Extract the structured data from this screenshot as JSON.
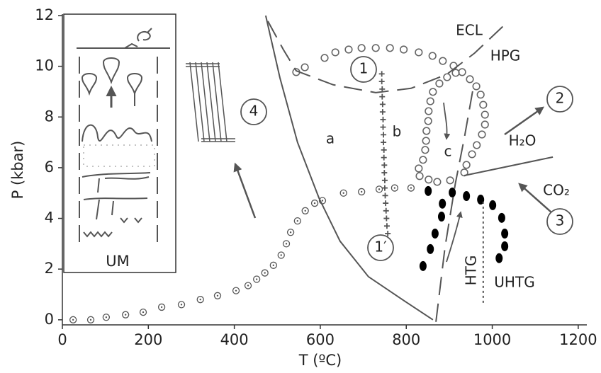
{
  "chart_data": {
    "type": "line",
    "xlabel": "T (ºC)",
    "ylabel": "P (kbar)",
    "xlim": [
      0,
      1220
    ],
    "ylim": [
      -0.2,
      12
    ],
    "xticks": [
      0,
      200,
      400,
      600,
      800,
      1000,
      1200
    ],
    "yticks": [
      0,
      2,
      4,
      6,
      8,
      10,
      12
    ],
    "series": [
      {
        "style": "dotted-circle",
        "color": "#555",
        "x": [
          25,
          66,
          102,
          147,
          188,
          231,
          277,
          321,
          361,
          404,
          432,
          452,
          471,
          491,
          509,
          521,
          531,
          547,
          565,
          587,
          605,
          654,
          696,
          737,
          773,
          811
        ],
        "values": [
          0,
          0,
          0.1,
          0.2,
          0.3,
          0.5,
          0.6,
          0.8,
          0.95,
          1.15,
          1.35,
          1.6,
          1.85,
          2.15,
          2.55,
          3.0,
          3.45,
          3.9,
          4.3,
          4.6,
          4.7,
          5.0,
          5.05,
          5.15,
          5.2,
          5.2
        ]
      },
      {
        "style": "solid",
        "color": "#555",
        "x": [
          473,
          506,
          547,
          597,
          646,
          712,
          795,
          862
        ],
        "values": [
          12,
          9.55,
          7.0,
          4.8,
          3.1,
          1.7,
          0.75,
          0
        ]
      },
      {
        "style": "open-circle",
        "color": "#666",
        "x": [
          544,
          564,
          610,
          635,
          666,
          696,
          729,
          762,
          794,
          829,
          861,
          885,
          910,
          930,
          948,
          963,
          973,
          979,
          983,
          983,
          976,
          964,
          953,
          940,
          935
        ],
        "values": [
          9.77,
          9.96,
          10.33,
          10.55,
          10.66,
          10.72,
          10.72,
          10.72,
          10.66,
          10.55,
          10.41,
          10.21,
          10.02,
          9.77,
          9.49,
          9.21,
          8.88,
          8.48,
          8.09,
          7.7,
          7.31,
          6.89,
          6.53,
          6.11,
          5.81
        ]
      },
      {
        "style": "open-circle",
        "color": "#666",
        "x": [
          915,
          895,
          877,
          862,
          856,
          852,
          851,
          847,
          846,
          844,
          839,
          829,
          831,
          852,
          872,
          902
        ],
        "values": [
          9.74,
          9.57,
          9.32,
          8.99,
          8.62,
          8.23,
          7.84,
          7.45,
          7.06,
          6.7,
          6.31,
          5.97,
          5.67,
          5.53,
          5.44,
          5.5
        ]
      },
      {
        "style": "cross",
        "color": "#555",
        "x": [
          743,
          743,
          744,
          744,
          745,
          745,
          746,
          746,
          747,
          747,
          748,
          748,
          749,
          749,
          750,
          750,
          751,
          752,
          753,
          754,
          755,
          757,
          759
        ],
        "values": [
          9.7,
          9.4,
          9.1,
          8.8,
          8.5,
          8.2,
          7.9,
          7.6,
          7.3,
          7.0,
          6.7,
          6.4,
          6.1,
          5.8,
          5.5,
          5.2,
          4.9,
          4.6,
          4.3,
          4.0,
          3.7,
          3.4,
          3.1
        ]
      },
      {
        "style": "filled-ellipse",
        "color": "#000",
        "x": [
          839,
          856,
          867,
          882,
          884,
          851,
          907,
          940,
          973,
          1001,
          1022,
          1029,
          1029,
          1016
        ],
        "values": [
          2.12,
          2.79,
          3.4,
          4.07,
          4.58,
          5.08,
          5.02,
          4.88,
          4.74,
          4.52,
          4.02,
          3.4,
          2.9,
          2.43
        ]
      },
      {
        "style": "dashed",
        "color": "#555",
        "x": [
          478,
          514,
          544,
          630,
          729,
          811,
          894,
          959,
          1029
        ],
        "values": [
          11.78,
          10.66,
          9.82,
          9.27,
          8.96,
          9.13,
          9.68,
          10.52,
          11.64
        ]
      },
      {
        "style": "dashed",
        "color": "#555",
        "x": [
          869,
          890,
          914,
          935,
          957
        ],
        "values": [
          -0.08,
          2.85,
          5.36,
          7.17,
          9.27
        ]
      },
      {
        "style": "dotted",
        "color": "#555",
        "x": [
          979,
          979
        ],
        "values": [
          4.66,
          0.61
        ]
      },
      {
        "style": "solid",
        "color": "#555",
        "x": [
          935,
          1141
        ],
        "values": [
          5.69,
          6.42
        ]
      }
    ],
    "annotations": [
      "ECL",
      "HPG",
      "1",
      "a",
      "b",
      "c",
      "2",
      "H₂O",
      "CO₂",
      "3",
      "4",
      "1′",
      "HTG",
      "UHTG"
    ],
    "inset": {
      "label": "UM"
    }
  }
}
